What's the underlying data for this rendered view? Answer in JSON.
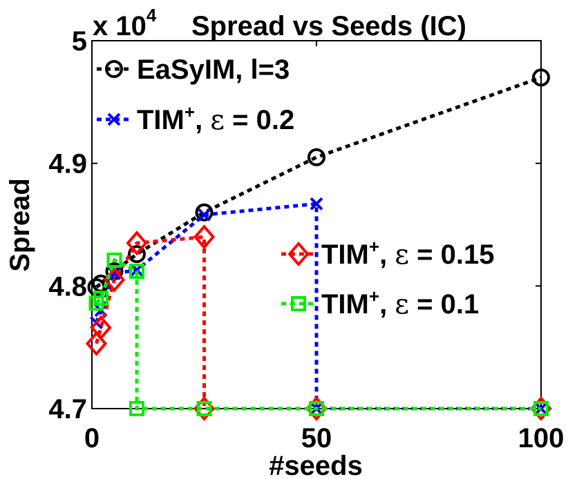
{
  "chart_data": {
    "type": "line",
    "title": "Spread vs Seeds (IC)",
    "xlabel": "#seeds",
    "ylabel": "Spread",
    "y_multiplier": {
      "base": "x 10",
      "exponent": "4"
    },
    "xlim": [
      0,
      100
    ],
    "ylim": [
      4.7,
      5.0
    ],
    "xticks": [
      0,
      50,
      100
    ],
    "xtick_labels": [
      "0",
      "50",
      "100"
    ],
    "yticks": [
      4.7,
      4.8,
      4.9,
      5.0
    ],
    "ytick_labels": [
      "4.7",
      "4.8",
      "4.9",
      "5"
    ],
    "grid": false,
    "series": [
      {
        "name": "EaSyIM, l=3",
        "label_parts": {
          "main": "EaSyIM, l=3"
        },
        "color": "#000000",
        "marker": "circle",
        "legend": "upper",
        "points": [
          [
            1,
            4.799
          ],
          [
            2,
            4.802
          ],
          [
            5,
            4.812
          ],
          [
            10,
            4.826
          ],
          [
            25,
            4.86
          ],
          [
            50,
            4.905
          ],
          [
            100,
            4.97
          ]
        ]
      },
      {
        "name": "TIM+, ε = 0.2",
        "label_parts": {
          "base": "TIM",
          "sup": "+",
          "sep": ", ",
          "greek": "ε",
          "rest": " = 0.2"
        },
        "color": "#0000ff",
        "marker": "x",
        "legend": "upper",
        "points": [
          [
            1,
            4.77
          ],
          [
            2,
            4.78
          ],
          [
            5,
            4.81
          ],
          [
            10,
            4.813
          ],
          [
            25,
            4.858
          ],
          [
            50,
            4.867
          ],
          [
            50,
            4.7
          ],
          [
            100,
            4.7
          ]
        ]
      },
      {
        "name": "TIM+, ε = 0.15",
        "label_parts": {
          "base": "TIM",
          "sup": "+",
          "sep": ", ",
          "greek": "ε",
          "rest": " = 0.15"
        },
        "color": "#ff0000",
        "marker": "diamond",
        "legend": "lower",
        "points": [
          [
            1,
            4.753
          ],
          [
            2,
            4.766
          ],
          [
            5,
            4.805
          ],
          [
            10,
            4.835
          ],
          [
            25,
            4.84
          ],
          [
            25,
            4.7
          ],
          [
            50,
            4.7
          ],
          [
            100,
            4.7
          ]
        ]
      },
      {
        "name": "TIM+, ε = 0.1",
        "label_parts": {
          "base": "TIM",
          "sup": "+",
          "sep": ", ",
          "greek": "ε",
          "rest": " = 0.1"
        },
        "color": "#00ee00",
        "marker": "square",
        "legend": "lower",
        "points": [
          [
            1,
            4.786
          ],
          [
            2,
            4.79
          ],
          [
            5,
            4.821
          ],
          [
            10,
            4.812
          ],
          [
            10,
            4.7
          ],
          [
            25,
            4.7
          ],
          [
            50,
            4.7
          ],
          [
            100,
            4.7
          ]
        ]
      }
    ]
  }
}
